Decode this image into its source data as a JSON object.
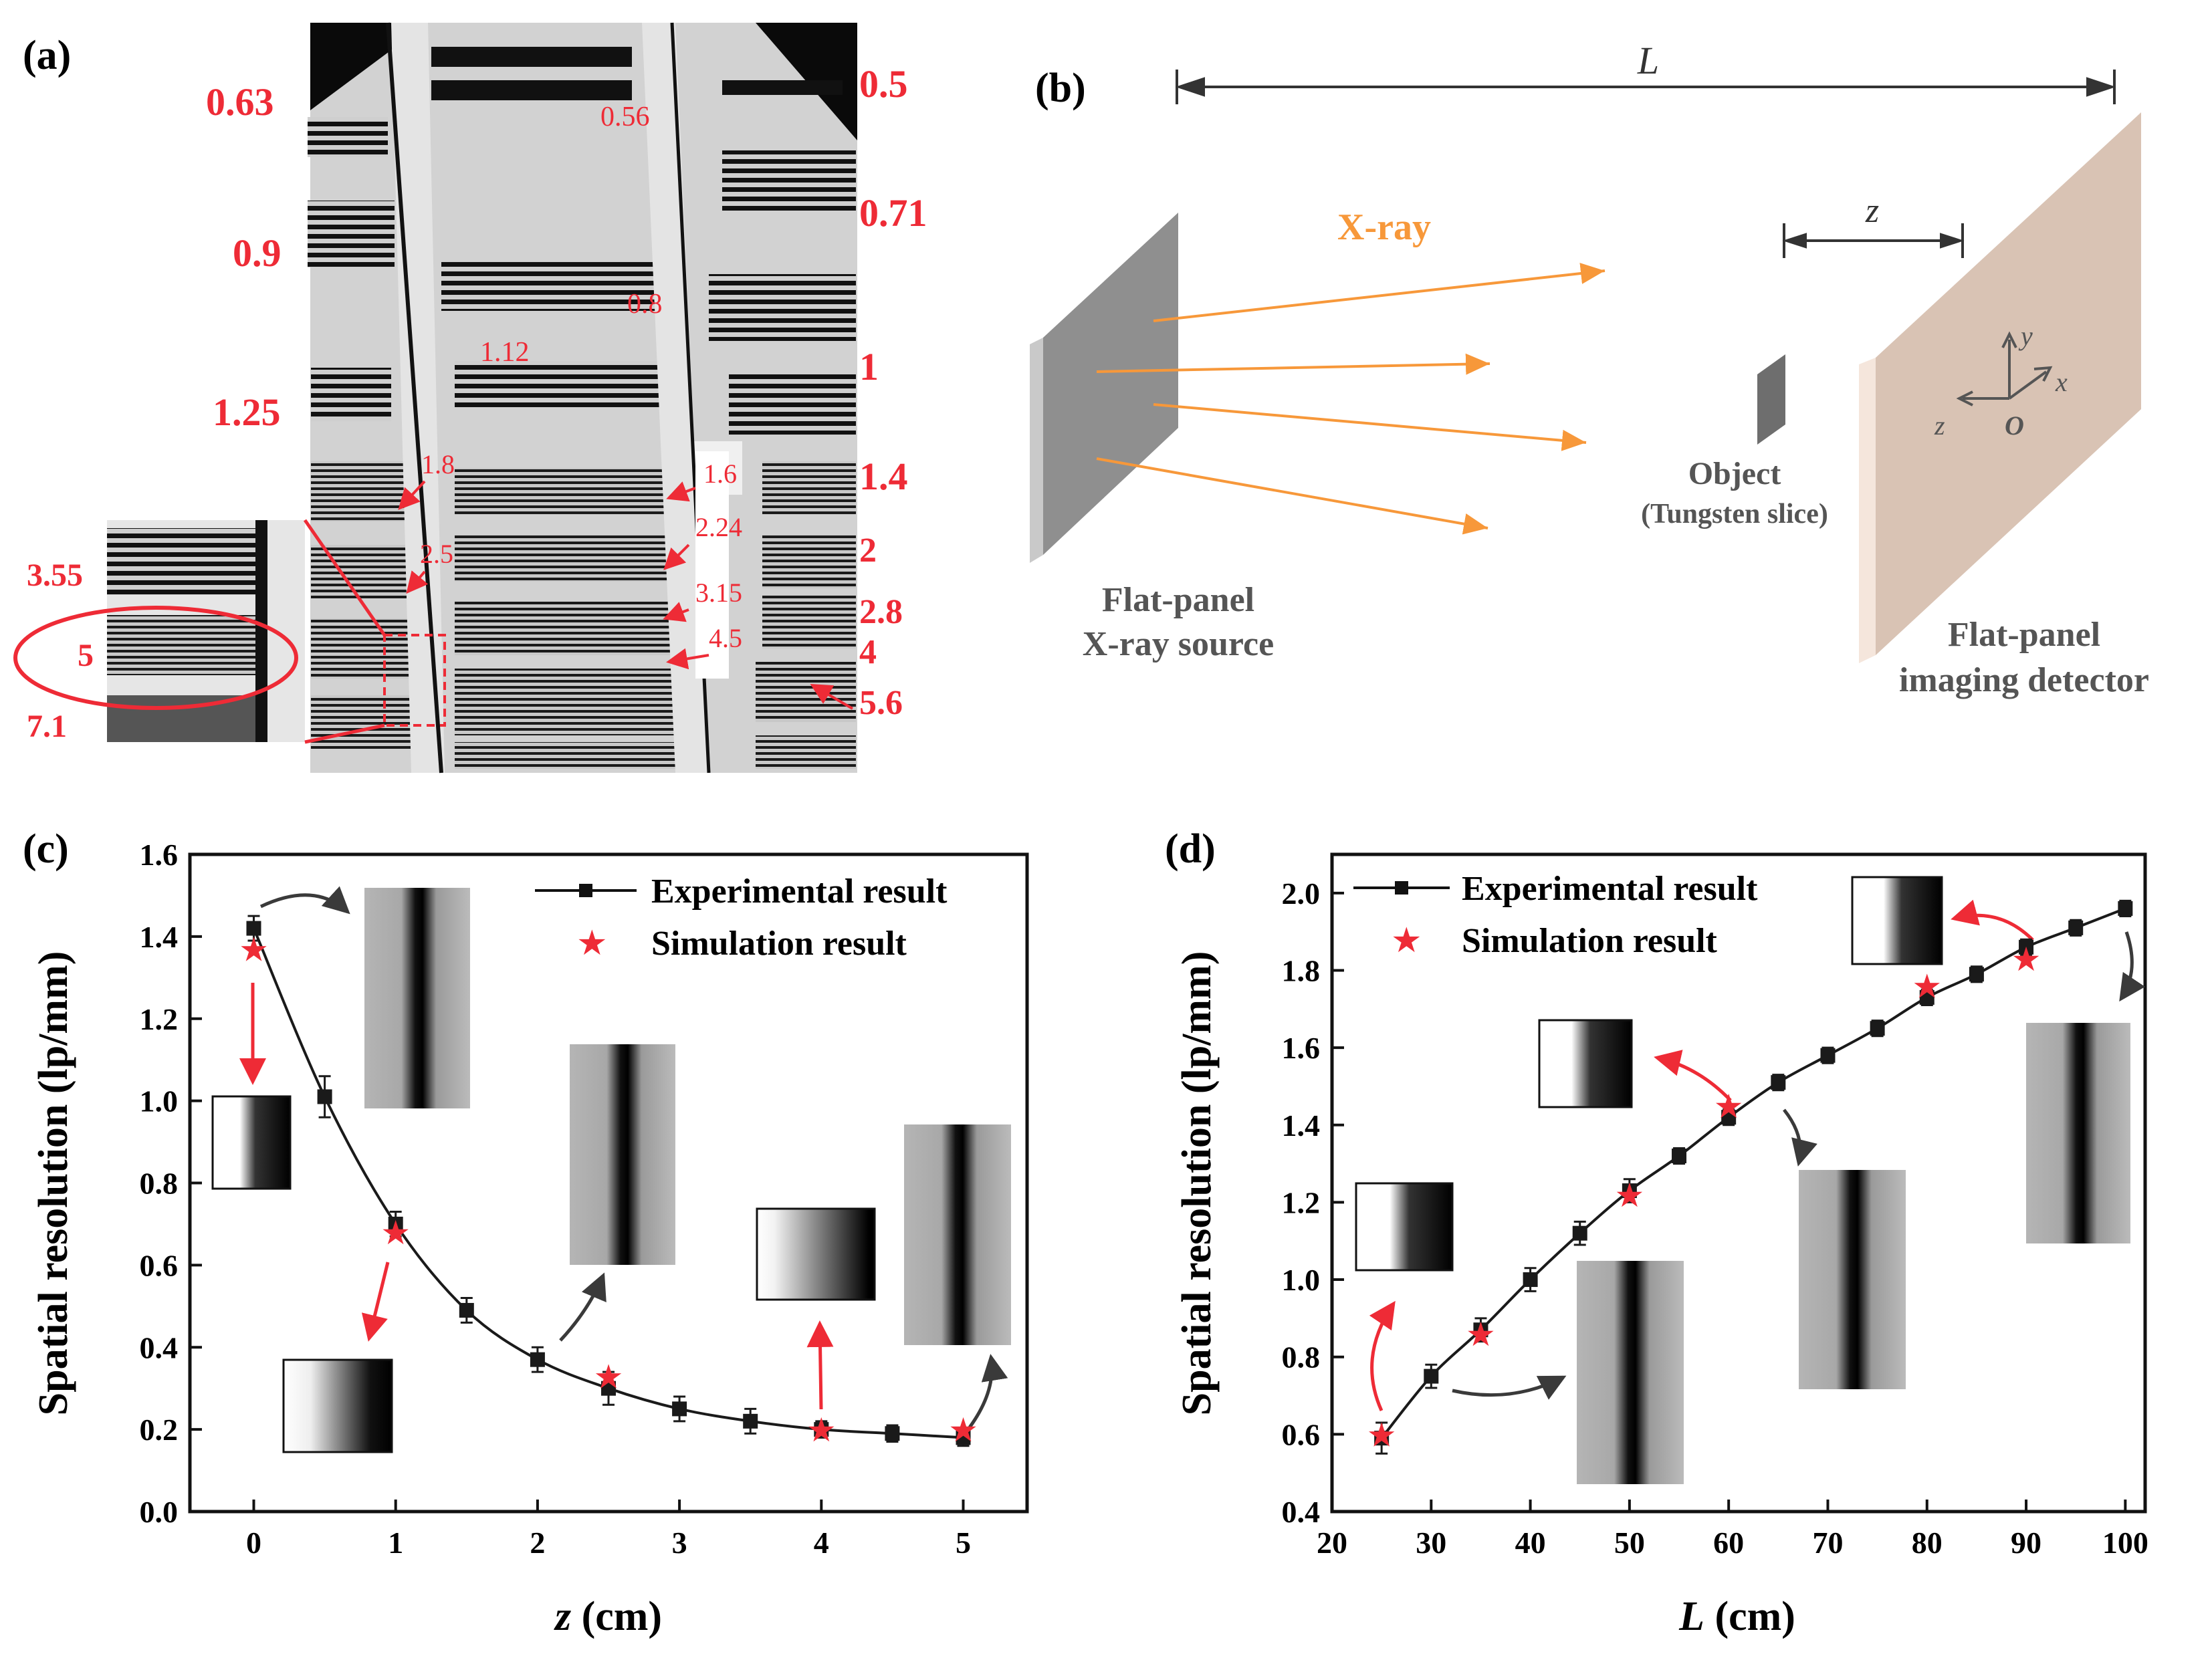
{
  "panel_a": {
    "label": "(a)",
    "left_numbers": [
      "0.63",
      "0.9",
      "1.25",
      "3.55",
      "5",
      "7.1"
    ],
    "right_numbers": [
      "0.5",
      "0.71",
      "1",
      "1.4",
      "2",
      "2.8",
      "4",
      "5.6"
    ],
    "inner_numbers": [
      "0.56",
      "0.8",
      "1.12",
      "1.8",
      "2.5",
      "1.6",
      "2.24",
      "3.15",
      "4.5"
    ]
  },
  "panel_b": {
    "label": "(b)",
    "distance_L": "L",
    "distance_z": "z",
    "xray_label": "X-ray",
    "source_label_1": "Flat-panel",
    "source_label_2": "X-ray source",
    "object_label_1": "Object",
    "object_label_2": "(Tungsten slice)",
    "detector_label_1": "Flat-panel",
    "detector_label_2": "imaging  detector",
    "axis_y": "y",
    "axis_x": "x",
    "axis_z": "z",
    "axis_o": "O"
  },
  "chart_data": [
    {
      "type": "line",
      "panel_label": "(c)",
      "xlabel_var": "z",
      "xlabel_unit": " (cm)",
      "ylabel": "Spatial resolution (lp/mm)",
      "xlim": [
        -0.45,
        5.45
      ],
      "ylim": [
        0.0,
        1.6
      ],
      "x_ticks": [
        "0",
        "1",
        "2",
        "3",
        "4",
        "5"
      ],
      "y_ticks": [
        "0.0",
        "0.2",
        "0.4",
        "0.6",
        "0.8",
        "1.0",
        "1.2",
        "1.4",
        "1.6"
      ],
      "legend": [
        "Experimental result",
        "Simulation result"
      ],
      "series": [
        {
          "name": "Experimental result",
          "x": [
            0,
            0.5,
            1,
            1.5,
            2,
            2.5,
            3,
            3.5,
            4,
            4.5,
            5
          ],
          "y": [
            1.42,
            1.01,
            0.7,
            0.49,
            0.37,
            0.3,
            0.25,
            0.22,
            0.2,
            0.19,
            0.18
          ],
          "err": [
            0.03,
            0.05,
            0.03,
            0.03,
            0.03,
            0.04,
            0.03,
            0.03,
            0.02,
            0.02,
            0.02
          ]
        },
        {
          "name": "Simulation result",
          "x": [
            0,
            1,
            2.5,
            4,
            5
          ],
          "y": [
            1.37,
            0.68,
            0.33,
            0.2,
            0.2
          ]
        }
      ],
      "colors": {
        "experimental": "#1a1a1a",
        "simulation": "#ee2b36"
      }
    },
    {
      "type": "line",
      "panel_label": "(d)",
      "xlabel_var": "L",
      "xlabel_unit": " (cm)",
      "ylabel": "Spatial resolution (lp/mm)",
      "xlim": [
        20,
        102
      ],
      "ylim": [
        0.4,
        2.1
      ],
      "x_ticks": [
        "20",
        "30",
        "40",
        "50",
        "60",
        "70",
        "80",
        "90",
        "100"
      ],
      "y_ticks": [
        "0.4",
        "0.6",
        "0.8",
        "1.0",
        "1.2",
        "1.4",
        "1.6",
        "1.8",
        "2.0"
      ],
      "legend": [
        "Experimental result",
        "Simulation result"
      ],
      "series": [
        {
          "name": "Experimental result",
          "x": [
            25,
            30,
            35,
            40,
            45,
            50,
            55,
            60,
            65,
            70,
            75,
            80,
            85,
            90,
            95,
            100
          ],
          "y": [
            0.59,
            0.75,
            0.87,
            1.0,
            1.12,
            1.23,
            1.32,
            1.42,
            1.51,
            1.58,
            1.65,
            1.73,
            1.79,
            1.86,
            1.91,
            1.96
          ],
          "err": [
            0.04,
            0.03,
            0.03,
            0.03,
            0.03,
            0.03,
            0.02,
            0.02,
            0.02,
            0.02,
            0.02,
            0.02,
            0.02,
            0.02,
            0.02,
            0.02
          ]
        },
        {
          "name": "Simulation result",
          "x": [
            25,
            35,
            50,
            60,
            80,
            90
          ],
          "y": [
            0.6,
            0.86,
            1.22,
            1.45,
            1.76,
            1.83
          ]
        }
      ],
      "colors": {
        "experimental": "#1a1a1a",
        "simulation": "#ee2b36"
      }
    }
  ]
}
